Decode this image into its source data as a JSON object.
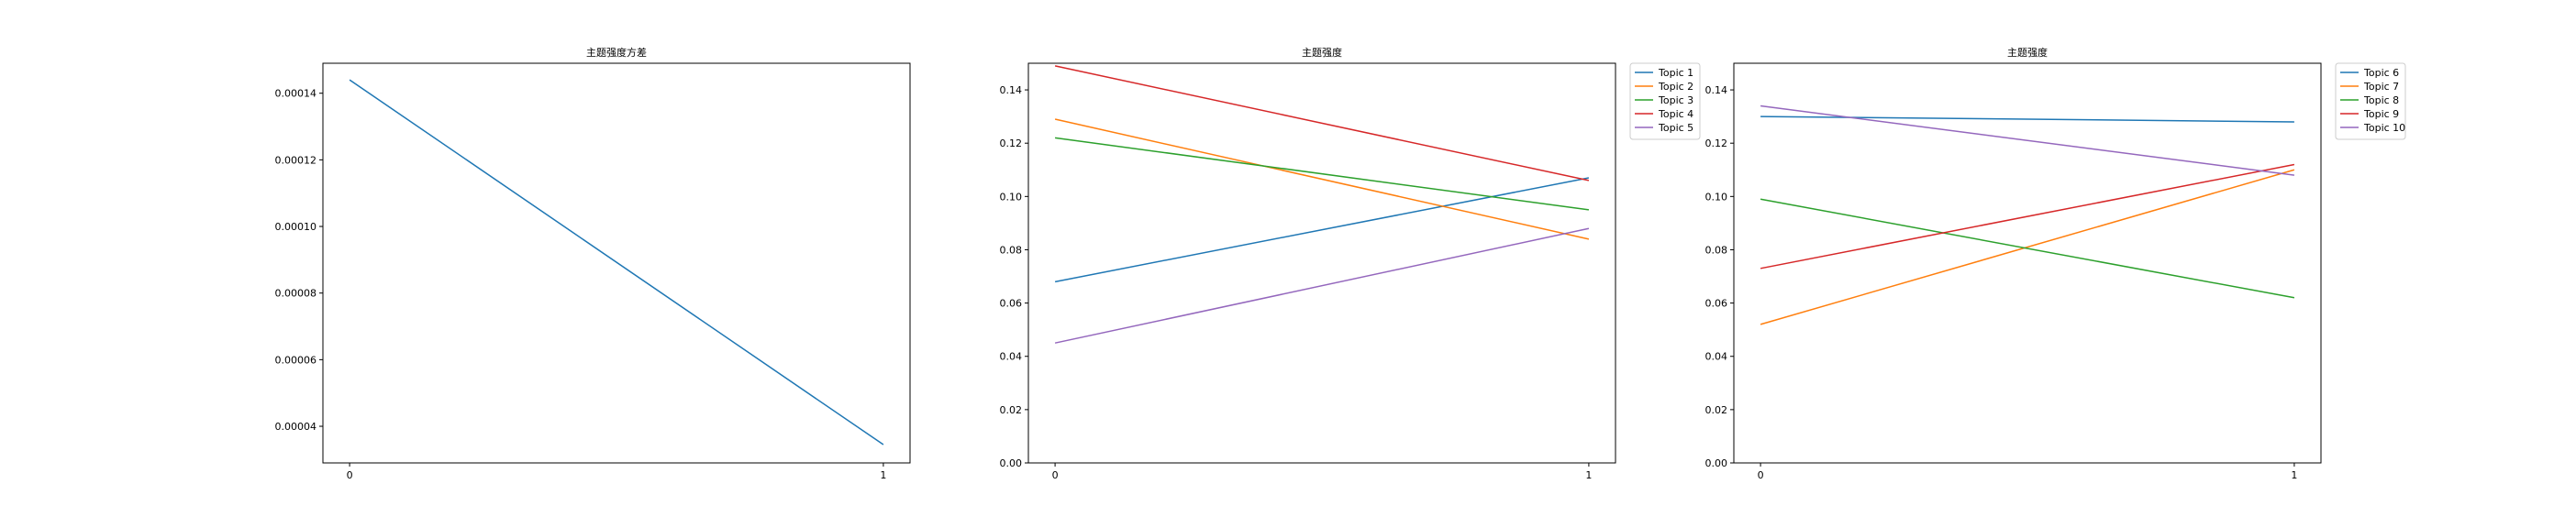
{
  "figure": {
    "background": "#ffffff"
  },
  "chart_data": [
    {
      "type": "line",
      "title": "主题强度方差",
      "xlabel": "",
      "ylabel": "",
      "x": [
        0,
        1
      ],
      "xticks": [
        "0",
        "1"
      ],
      "xlim": [
        -0.05,
        1.05
      ],
      "ylim": [
        2.9e-05,
        0.000149
      ],
      "yticks": [
        "0.00004",
        "0.00006",
        "0.00008",
        "0.00010",
        "0.00012",
        "0.00014"
      ],
      "ytick_values": [
        4e-05,
        6e-05,
        8e-05,
        0.0001,
        0.00012,
        0.00014
      ],
      "grid": false,
      "legend": "none",
      "series": [
        {
          "color": "#1f77b4",
          "values": [
            0.000144,
            3.45e-05
          ]
        }
      ]
    },
    {
      "type": "line",
      "title": "主题强度",
      "xlabel": "",
      "ylabel": "",
      "x": [
        0,
        1
      ],
      "xticks": [
        "0",
        "1"
      ],
      "xlim": [
        -0.05,
        1.05
      ],
      "ylim": [
        0.0,
        0.15
      ],
      "yticks": [
        "0.00",
        "0.02",
        "0.04",
        "0.06",
        "0.08",
        "0.10",
        "0.12",
        "0.14"
      ],
      "ytick_values": [
        0.0,
        0.02,
        0.04,
        0.06,
        0.08,
        0.1,
        0.12,
        0.14
      ],
      "grid": false,
      "legend": "outside-right",
      "series": [
        {
          "name": "Topic 1",
          "color": "#1f77b4",
          "values": [
            0.068,
            0.107
          ]
        },
        {
          "name": "Topic 2",
          "color": "#ff7f0e",
          "values": [
            0.129,
            0.084
          ]
        },
        {
          "name": "Topic 3",
          "color": "#2ca02c",
          "values": [
            0.122,
            0.095
          ]
        },
        {
          "name": "Topic 4",
          "color": "#d62728",
          "values": [
            0.149,
            0.106
          ]
        },
        {
          "name": "Topic 5",
          "color": "#9467bd",
          "values": [
            0.045,
            0.088
          ]
        }
      ]
    },
    {
      "type": "line",
      "title": "主题强度",
      "xlabel": "",
      "ylabel": "",
      "x": [
        0,
        1
      ],
      "xticks": [
        "0",
        "1"
      ],
      "xlim": [
        -0.05,
        1.05
      ],
      "ylim": [
        0.0,
        0.15
      ],
      "yticks": [
        "0.00",
        "0.02",
        "0.04",
        "0.06",
        "0.08",
        "0.10",
        "0.12",
        "0.14"
      ],
      "ytick_values": [
        0.0,
        0.02,
        0.04,
        0.06,
        0.08,
        0.1,
        0.12,
        0.14
      ],
      "grid": false,
      "legend": "outside-right",
      "series": [
        {
          "name": "Topic 6",
          "color": "#1f77b4",
          "values": [
            0.13,
            0.128
          ]
        },
        {
          "name": "Topic 7",
          "color": "#ff7f0e",
          "values": [
            0.052,
            0.11
          ]
        },
        {
          "name": "Topic 8",
          "color": "#2ca02c",
          "values": [
            0.099,
            0.062
          ]
        },
        {
          "name": "Topic 9",
          "color": "#d62728",
          "values": [
            0.073,
            0.112
          ]
        },
        {
          "name": "Topic 10",
          "color": "#9467bd",
          "values": [
            0.134,
            0.108
          ]
        }
      ]
    }
  ]
}
